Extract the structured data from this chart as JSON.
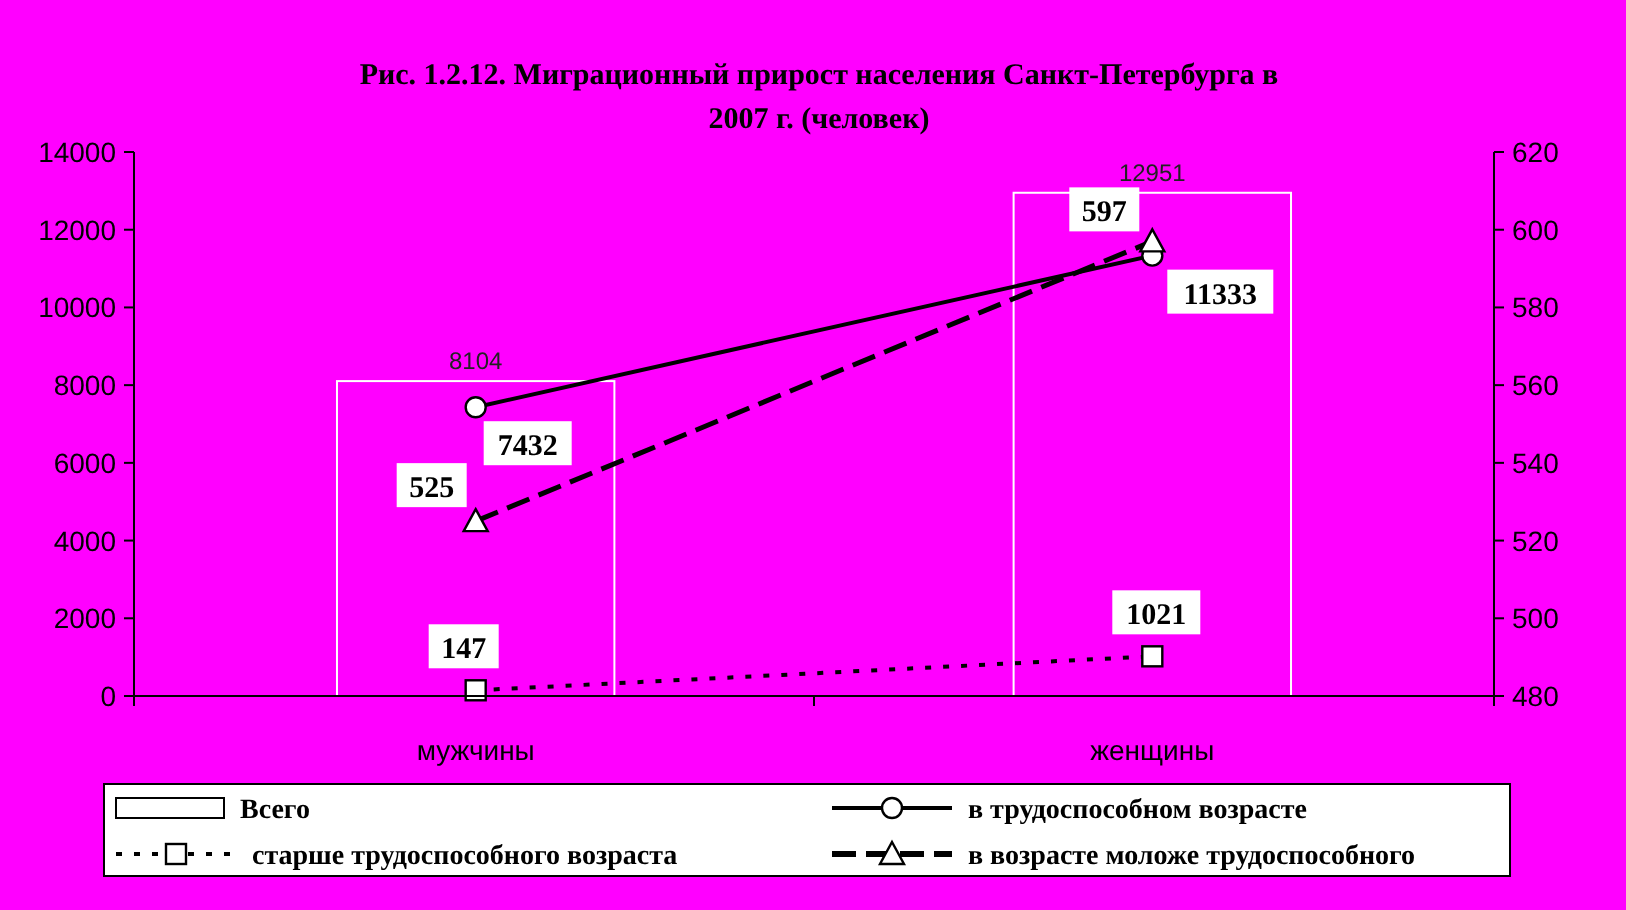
{
  "chart_data": {
    "type": "bar",
    "title": "Рис. 1.2.12. Миграционный прирост населения Санкт-Петербурга в 2007 г. (человек)",
    "categories": [
      "мужчины",
      "женщины"
    ],
    "series": [
      {
        "name": "Всего",
        "color": "#ff00ff",
        "values": [
          8104,
          12951
        ]
      },
      {
        "name": "в трудоспособном возрасте",
        "type": "line",
        "color": "#000000",
        "marker": "circle",
        "line_style": "solid",
        "values": [
          7432,
          11333
        ]
      },
      {
        "name": "старше трудоспособного возраста",
        "type": "line",
        "color": "#000000",
        "marker": "square",
        "line_style": "dotted",
        "values": [
          147,
          1021
        ]
      },
      {
        "name": "в возрасте моложе трудоспособного",
        "type": "line",
        "color": "#000000",
        "marker": "triangle",
        "line_style": "dashed",
        "axis": "y2",
        "values": [
          525,
          597
        ]
      }
    ],
    "ylim": [
      0,
      14000
    ],
    "yticks": [
      0,
      2000,
      4000,
      6000,
      8000,
      10000,
      12000,
      14000
    ],
    "y2lim": [
      480,
      620
    ],
    "y2ticks": [
      480,
      500,
      520,
      540,
      560,
      580,
      600,
      620
    ],
    "data_labels": true,
    "grid": false,
    "legend": "bottom"
  }
}
